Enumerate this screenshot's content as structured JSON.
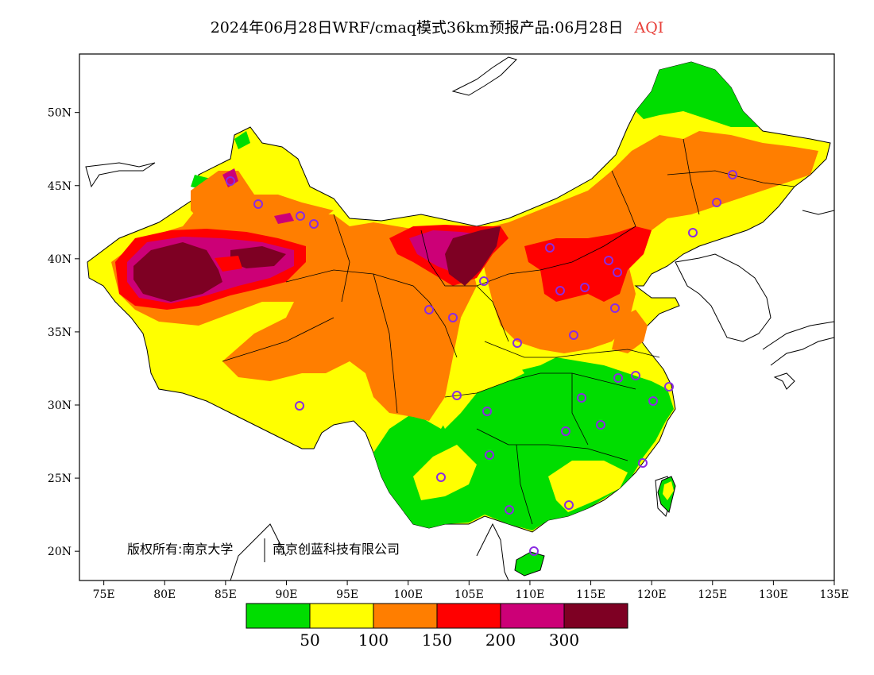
{
  "title": {
    "text": "2024年06月28日WRF/cmaq模式36km预报产品:06月28日",
    "variable": "AQI",
    "variable_color": "#e8403a"
  },
  "axes": {
    "lon_labels": [
      "75E",
      "80E",
      "85E",
      "90E",
      "95E",
      "100E",
      "105E",
      "110E",
      "115E",
      "120E",
      "125E",
      "130E",
      "135E"
    ],
    "lat_labels": [
      "50N",
      "45N",
      "40N",
      "35N",
      "30N",
      "25N",
      "20N"
    ],
    "lon_range": [
      73,
      135
    ],
    "lat_range": [
      18,
      54
    ]
  },
  "copyright": {
    "left": "版权所有:南京大学",
    "right": "南京创蓝科技有限公司"
  },
  "legend": {
    "thresholds": [
      "50",
      "100",
      "150",
      "200",
      "300"
    ],
    "colors": [
      "#00dd00",
      "#ffff00",
      "#ff7e00",
      "#ff0000",
      "#cc0077",
      "#7e0023"
    ]
  },
  "colors": {
    "good": "#00dd00",
    "moderate": "#ffff00",
    "usg": "#ff7e00",
    "unhealthy": "#ff0000",
    "very_unhealthy": "#cc0077",
    "hazardous": "#7e0023",
    "station_marker": "#8a2be2"
  }
}
